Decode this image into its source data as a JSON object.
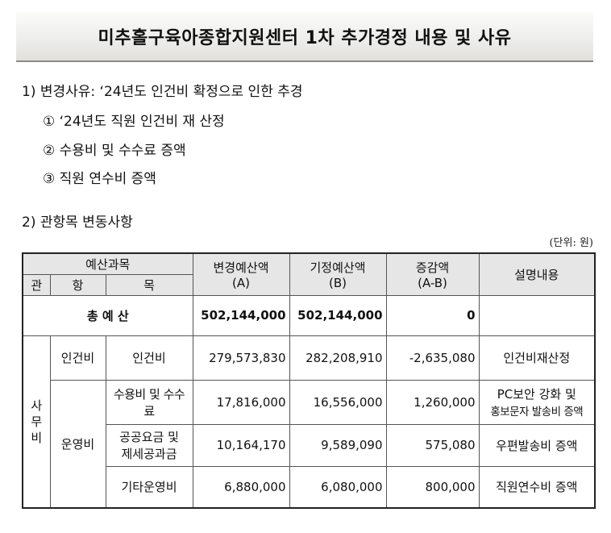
{
  "title": "미추홀구육아종합지원센터 1차 추가경정 내용 및 사유",
  "section1": {
    "heading": "1)  변경사유: ‘24년도 인건비 확정으로 인한 추경",
    "items": [
      "① ‘24년도 직원 인건비 재 산정",
      "② 수용비 및 수수료 증액",
      "③ 직원 연수비 증액"
    ]
  },
  "section2": {
    "heading": "2)  관항목 변동사항"
  },
  "unit": "(단위: 원)",
  "table": {
    "headers": {
      "budget_category": "예산과목",
      "gwan": "관",
      "hang": "항",
      "mok": "목",
      "changed_title": "변경예산액",
      "changed_sub": "(A)",
      "existing_title": "기정예산액",
      "existing_sub": "(B)",
      "diff_title": "증감액",
      "diff_sub": "(A-B)",
      "description": "설명내용"
    },
    "total": {
      "label": "총  예  산",
      "changed": "502,144,000",
      "existing": "502,144,000",
      "diff": "0",
      "desc": ""
    },
    "gwan_label": [
      "사",
      "무",
      "비"
    ],
    "hang_personnel": "인건비",
    "hang_operation": "운영비",
    "rows": [
      {
        "mok": "인건비",
        "changed": "279,573,830",
        "existing": "282,208,910",
        "diff": "-2,635,080",
        "desc": "인건비재산정"
      },
      {
        "mok": "수용비 및 수수료",
        "changed": "17,816,000",
        "existing": "16,556,000",
        "diff": "1,260,000",
        "desc_line1": "PC보안 강화 및",
        "desc_line2": "홍보문자 발송비 증액"
      },
      {
        "mok_line1": "공공요금 및",
        "mok_line2": "제세공과금",
        "changed": "10,164,170",
        "existing": "9,589,090",
        "diff": "575,080",
        "desc": "우편발송비 증액"
      },
      {
        "mok": "기타운영비",
        "changed": "6,880,000",
        "existing": "6,080,000",
        "diff": "800,000",
        "desc": "직원연수비 증액"
      }
    ]
  }
}
